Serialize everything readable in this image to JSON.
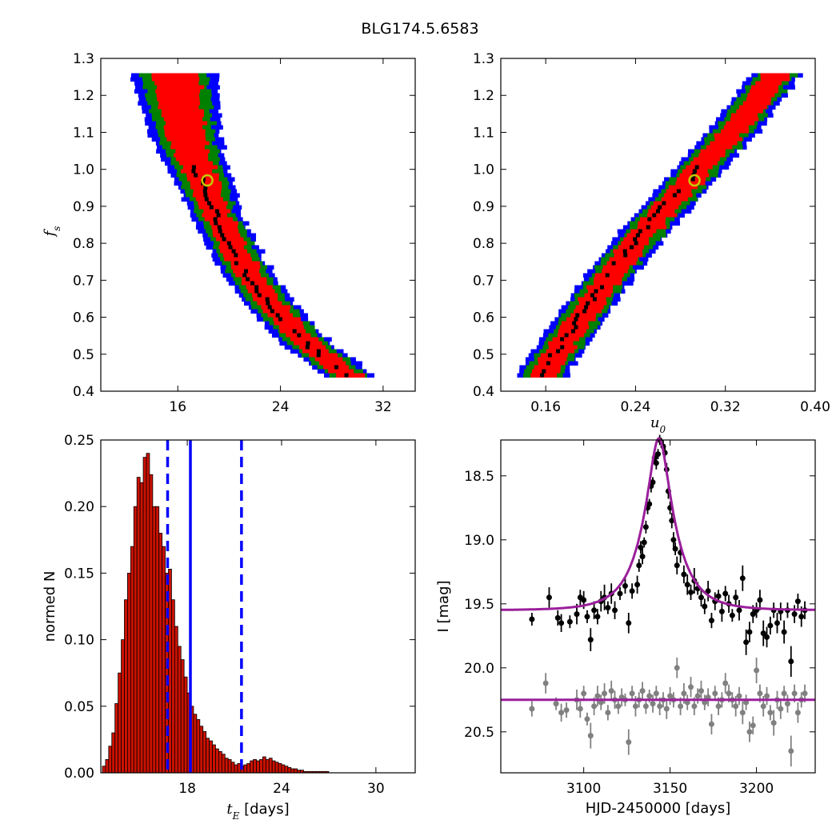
{
  "figure": {
    "title": "BLG174.5.6583"
  },
  "colors": {
    "contour_outer": "#0000ff",
    "contour_mid": "#008000",
    "contour_inner": "#ff0000",
    "contour_core": "#000000",
    "best_fit_marker": "#c8c800",
    "hist_bar": "#cc1100",
    "median_line": "#0000ff",
    "model_curve": "#9b1f9b",
    "data_main": "#000000",
    "data_residual": "#808080"
  },
  "chart_data": [
    {
      "id": "tE-fs",
      "type": "heatmap",
      "xlim": [
        10,
        34.5
      ],
      "ylim": [
        0.4,
        1.3
      ],
      "xticks": [
        16,
        24,
        32
      ],
      "yticks": [
        0.4,
        0.5,
        0.6,
        0.7,
        0.8,
        0.9,
        1.0,
        1.1,
        1.2,
        1.3
      ],
      "xlabel": "",
      "ylabel": "f_s",
      "ylabel_parts": {
        "base": "f",
        "sub": "s"
      },
      "ridge": [
        [
          15.8,
          1.26
        ],
        [
          16.6,
          1.1
        ],
        [
          18.0,
          0.97
        ],
        [
          19.5,
          0.85
        ],
        [
          21.2,
          0.74
        ],
        [
          23.5,
          0.63
        ],
        [
          26.2,
          0.53
        ],
        [
          29.5,
          0.445
        ]
      ],
      "best_fit": {
        "x": 18.3,
        "y": 0.97
      }
    },
    {
      "id": "u0-fs",
      "type": "heatmap",
      "xlim": [
        0.12,
        0.4
      ],
      "ylim": [
        0.4,
        1.3
      ],
      "xticks": [
        0.16,
        0.24,
        0.32,
        0.4
      ],
      "yticks": [
        0.4,
        0.5,
        0.6,
        0.7,
        0.8,
        0.9,
        1.0,
        1.1,
        1.2,
        1.3
      ],
      "xlabel": "u_0",
      "xlabel_parts": {
        "base": "u",
        "sub": "0"
      },
      "ylabel": "",
      "ridge": [
        [
          0.156,
          0.445
        ],
        [
          0.19,
          0.6
        ],
        [
          0.225,
          0.75
        ],
        [
          0.26,
          0.88
        ],
        [
          0.29,
          0.98
        ],
        [
          0.33,
          1.12
        ],
        [
          0.365,
          1.26
        ]
      ],
      "best_fit": {
        "x": 0.2925,
        "y": 0.97
      }
    },
    {
      "id": "tE-hist",
      "type": "bar",
      "xlim": [
        12.5,
        32.5
      ],
      "ylim": [
        0,
        0.25
      ],
      "xticks": [
        18,
        24,
        30
      ],
      "yticks": [
        0.0,
        0.05,
        0.1,
        0.15,
        0.2,
        0.25
      ],
      "xlabel": "[days]",
      "xlabel_parts": {
        "base": "t",
        "sub": "E",
        "rest": " [days]"
      },
      "ylabel": "normed N",
      "bin_start": 12.6,
      "bin_width": 0.2,
      "values": [
        0.005,
        0.01,
        0.02,
        0.03,
        0.052,
        0.075,
        0.1,
        0.13,
        0.15,
        0.17,
        0.2,
        0.222,
        0.218,
        0.237,
        0.24,
        0.224,
        0.2,
        0.2,
        0.18,
        0.17,
        0.15,
        0.153,
        0.13,
        0.11,
        0.095,
        0.085,
        0.072,
        0.06,
        0.05,
        0.044,
        0.04,
        0.035,
        0.031,
        0.026,
        0.024,
        0.021,
        0.018,
        0.016,
        0.014,
        0.011,
        0.01,
        0.008,
        0.006,
        0.007,
        0.005,
        0.006,
        0.007,
        0.009,
        0.01,
        0.009,
        0.01,
        0.012,
        0.01,
        0.011,
        0.009,
        0.008,
        0.007,
        0.006,
        0.005,
        0.004,
        0.003,
        0.003,
        0.002,
        0.002,
        0.001,
        0.001,
        0.001,
        0.001,
        0.001,
        0.001,
        0.001,
        0.001
      ],
      "median": 18.2,
      "lower": 16.75,
      "upper": 21.45
    },
    {
      "id": "lightcurve",
      "type": "scatter",
      "xlim": [
        3052,
        3234
      ],
      "ylim": [
        20.82,
        18.22
      ],
      "xticks": [
        3100,
        3150,
        3200
      ],
      "yticks": [
        18.5,
        19.0,
        19.5,
        20.0,
        20.5
      ],
      "xlabel": "HJD-2450000 [days]",
      "ylabel": "I [mag]",
      "model": {
        "t0": 3143.5,
        "tE": 18.4,
        "u0": 0.293,
        "fs": 0.97,
        "baseline": 19.55
      },
      "residual_baseline": 20.25,
      "observations": [
        [
          3070,
          19.62,
          0.05
        ],
        [
          3080,
          19.45,
          0.08
        ],
        [
          3085,
          19.61,
          0.06
        ],
        [
          3087,
          19.65,
          0.07
        ],
        [
          3092,
          19.64,
          0.05
        ],
        [
          3096,
          19.58,
          0.08
        ],
        [
          3098,
          19.45,
          0.06
        ],
        [
          3100,
          19.47,
          0.07
        ],
        [
          3102,
          19.6,
          0.05
        ],
        [
          3104,
          19.78,
          0.09
        ],
        [
          3106,
          19.55,
          0.07
        ],
        [
          3108,
          19.6,
          0.06
        ],
        [
          3110,
          19.48,
          0.08
        ],
        [
          3112,
          19.45,
          0.1
        ],
        [
          3114,
          19.53,
          0.05
        ],
        [
          3116,
          19.42,
          0.08
        ],
        [
          3118,
          19.55,
          0.07
        ],
        [
          3121,
          19.42,
          0.05
        ],
        [
          3124,
          19.36,
          0.06
        ],
        [
          3126,
          19.65,
          0.08
        ],
        [
          3128,
          19.4,
          0.06
        ],
        [
          3131,
          19.35,
          0.07
        ],
        [
          3132,
          19.2,
          0.05
        ],
        [
          3133,
          19.06,
          0.05
        ],
        [
          3134,
          19.13,
          0.06
        ],
        [
          3135,
          19.02,
          0.04
        ],
        [
          3136,
          18.9,
          0.05
        ],
        [
          3137,
          18.75,
          0.05
        ],
        [
          3138,
          18.72,
          0.04
        ],
        [
          3139,
          18.58,
          0.05
        ],
        [
          3140,
          18.55,
          0.04
        ],
        [
          3141,
          18.36,
          0.04
        ],
        [
          3142,
          18.4,
          0.05
        ],
        [
          3143,
          18.33,
          0.04
        ],
        [
          3144,
          18.22,
          0.04
        ],
        [
          3146,
          18.27,
          0.05
        ],
        [
          3147,
          18.32,
          0.05
        ],
        [
          3148,
          18.45,
          0.05
        ],
        [
          3149,
          18.62,
          0.06
        ],
        [
          3150,
          18.75,
          0.05
        ],
        [
          3151,
          18.85,
          0.06
        ],
        [
          3152,
          19.0,
          0.06
        ],
        [
          3153,
          19.07,
          0.05
        ],
        [
          3154,
          19.2,
          0.07
        ],
        [
          3156,
          19.1,
          0.08
        ],
        [
          3158,
          19.27,
          0.07
        ],
        [
          3160,
          19.35,
          0.08
        ],
        [
          3162,
          19.41,
          0.06
        ],
        [
          3164,
          19.32,
          0.1
        ],
        [
          3166,
          19.38,
          0.05
        ],
        [
          3168,
          19.45,
          0.07
        ],
        [
          3170,
          19.52,
          0.06
        ],
        [
          3172,
          19.4,
          0.08
        ],
        [
          3174,
          19.63,
          0.06
        ],
        [
          3176,
          19.48,
          0.07
        ],
        [
          3178,
          19.44,
          0.05
        ],
        [
          3180,
          19.56,
          0.08
        ],
        [
          3182,
          19.42,
          0.06
        ],
        [
          3184,
          19.5,
          0.07
        ],
        [
          3186,
          19.59,
          0.05
        ],
        [
          3188,
          19.45,
          0.06
        ],
        [
          3190,
          19.55,
          0.08
        ],
        [
          3192,
          19.3,
          0.1
        ],
        [
          3194,
          19.8,
          0.1
        ],
        [
          3196,
          19.72,
          0.08
        ],
        [
          3198,
          19.58,
          0.07
        ],
        [
          3200,
          19.55,
          0.06
        ],
        [
          3202,
          19.47,
          0.08
        ],
        [
          3204,
          19.73,
          0.1
        ],
        [
          3206,
          19.76,
          0.08
        ],
        [
          3208,
          19.67,
          0.07
        ],
        [
          3210,
          19.55,
          0.06
        ],
        [
          3212,
          19.65,
          0.08
        ],
        [
          3214,
          19.56,
          0.07
        ],
        [
          3216,
          19.72,
          0.09
        ],
        [
          3218,
          19.55,
          0.06
        ],
        [
          3220,
          19.95,
          0.12
        ],
        [
          3222,
          19.58,
          0.07
        ],
        [
          3224,
          19.48,
          0.06
        ],
        [
          3226,
          19.6,
          0.08
        ],
        [
          3228,
          19.55,
          0.07
        ]
      ],
      "residuals": [
        [
          3070,
          20.32,
          0.06
        ],
        [
          3078,
          20.12,
          0.08
        ],
        [
          3084,
          20.28,
          0.05
        ],
        [
          3087,
          20.35,
          0.07
        ],
        [
          3090,
          20.33,
          0.06
        ],
        [
          3096,
          20.25,
          0.08
        ],
        [
          3098,
          20.32,
          0.07
        ],
        [
          3100,
          20.2,
          0.06
        ],
        [
          3102,
          20.4,
          0.05
        ],
        [
          3104,
          20.53,
          0.1
        ],
        [
          3106,
          20.3,
          0.07
        ],
        [
          3108,
          20.22,
          0.08
        ],
        [
          3110,
          20.27,
          0.06
        ],
        [
          3112,
          20.2,
          0.08
        ],
        [
          3114,
          20.35,
          0.06
        ],
        [
          3116,
          20.18,
          0.08
        ],
        [
          3118,
          20.25,
          0.07
        ],
        [
          3120,
          20.3,
          0.06
        ],
        [
          3122,
          20.23,
          0.07
        ],
        [
          3124,
          20.25,
          0.05
        ],
        [
          3126,
          20.58,
          0.1
        ],
        [
          3128,
          20.2,
          0.06
        ],
        [
          3130,
          20.3,
          0.08
        ],
        [
          3132,
          20.25,
          0.06
        ],
        [
          3134,
          20.18,
          0.07
        ],
        [
          3136,
          20.3,
          0.06
        ],
        [
          3138,
          20.22,
          0.05
        ],
        [
          3140,
          20.28,
          0.07
        ],
        [
          3142,
          20.2,
          0.06
        ],
        [
          3144,
          20.3,
          0.07
        ],
        [
          3146,
          20.25,
          0.06
        ],
        [
          3148,
          20.32,
          0.08
        ],
        [
          3150,
          20.22,
          0.07
        ],
        [
          3152,
          20.25,
          0.06
        ],
        [
          3154,
          20.0,
          0.08
        ],
        [
          3156,
          20.3,
          0.07
        ],
        [
          3158,
          20.2,
          0.08
        ],
        [
          3160,
          20.27,
          0.06
        ],
        [
          3162,
          20.15,
          0.08
        ],
        [
          3164,
          20.3,
          0.07
        ],
        [
          3166,
          20.22,
          0.06
        ],
        [
          3168,
          20.18,
          0.08
        ],
        [
          3170,
          20.27,
          0.06
        ],
        [
          3172,
          20.23,
          0.07
        ],
        [
          3174,
          20.44,
          0.08
        ],
        [
          3176,
          20.2,
          0.06
        ],
        [
          3178,
          20.3,
          0.07
        ],
        [
          3180,
          20.25,
          0.06
        ],
        [
          3182,
          20.12,
          0.08
        ],
        [
          3184,
          20.2,
          0.07
        ],
        [
          3186,
          20.25,
          0.06
        ],
        [
          3188,
          20.3,
          0.08
        ],
        [
          3190,
          20.22,
          0.07
        ],
        [
          3192,
          20.35,
          0.09
        ],
        [
          3194,
          20.27,
          0.06
        ],
        [
          3196,
          20.5,
          0.08
        ],
        [
          3198,
          20.45,
          0.07
        ],
        [
          3200,
          20.02,
          0.1
        ],
        [
          3202,
          20.2,
          0.07
        ],
        [
          3204,
          20.3,
          0.08
        ],
        [
          3206,
          20.22,
          0.07
        ],
        [
          3208,
          20.35,
          0.06
        ],
        [
          3210,
          20.43,
          0.1
        ],
        [
          3212,
          20.25,
          0.07
        ],
        [
          3214,
          20.32,
          0.08
        ],
        [
          3216,
          20.2,
          0.06
        ],
        [
          3218,
          20.28,
          0.07
        ],
        [
          3220,
          20.65,
          0.12
        ],
        [
          3222,
          20.2,
          0.07
        ],
        [
          3224,
          20.35,
          0.08
        ],
        [
          3226,
          20.25,
          0.06
        ],
        [
          3228,
          20.2,
          0.07
        ]
      ]
    }
  ]
}
